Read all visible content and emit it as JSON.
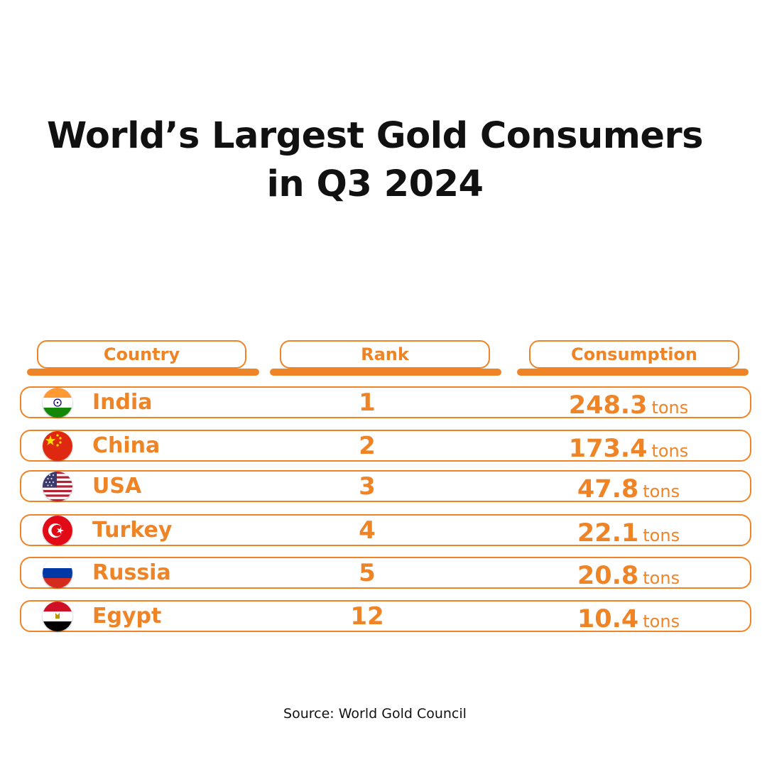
{
  "title_line1": "World’s Largest Gold Consumers",
  "title_line2": "in Q3 2024",
  "headers": {
    "country": "Country",
    "rank": "Rank",
    "consumption": "Consumption"
  },
  "rows": [
    {
      "country": "India",
      "rank": "1",
      "value": "248.3",
      "unit": "tons",
      "flag": "india-flag-icon"
    },
    {
      "country": "China",
      "rank": "2",
      "value": "173.4",
      "unit": "tons",
      "flag": "china-flag-icon"
    },
    {
      "country": "USA",
      "rank": "3",
      "value": "47.8",
      "unit": "tons",
      "flag": "usa-flag-icon"
    },
    {
      "country": "Turkey",
      "rank": "4",
      "value": "22.1",
      "unit": "tons",
      "flag": "turkey-flag-icon"
    },
    {
      "country": "Russia",
      "rank": "5",
      "value": "20.8",
      "unit": "tons",
      "flag": "russia-flag-icon"
    },
    {
      "country": "Egypt",
      "rank": "12",
      "value": "10.4",
      "unit": "tons",
      "flag": "egypt-flag-icon"
    }
  ],
  "source": "Source: World Gold Council",
  "colors": {
    "accent": "#ef8427",
    "text": "#111111"
  },
  "chart_data": {
    "type": "table",
    "title": "World’s Largest Gold Consumers in Q3 2024",
    "columns": [
      "Country",
      "Rank",
      "Consumption"
    ],
    "categories": [
      "India",
      "China",
      "USA",
      "Turkey",
      "Russia",
      "Egypt"
    ],
    "ranks": [
      1,
      2,
      3,
      4,
      5,
      12
    ],
    "values": [
      248.3,
      173.4,
      47.8,
      22.1,
      20.8,
      10.4
    ],
    "unit": "tons"
  }
}
